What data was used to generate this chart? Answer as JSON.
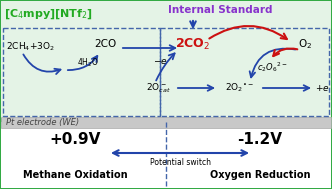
{
  "bg_outer": "#d8eeda",
  "bg_inner": "#e4f3e6",
  "bg_white": "#ffffff",
  "dashed_box_color": "#4466aa",
  "electrode_color": "#c8c8c8",
  "electrode_edge_color": "#aaaaaa",
  "electrode_text_color": "#444444",
  "title_ionic_liquid": "[C$_4$mpy][NTf$_2$]",
  "title_ionic_liquid_color": "#22aa22",
  "title_internal_standard": "Internal Standard",
  "title_internal_standard_color": "#8833cc",
  "arrow_blue": "#2244aa",
  "arrow_red": "#cc1111",
  "outer_border_color": "#33aa44",
  "text_voltage_left": "+0.9V",
  "text_voltage_right": "-1.2V",
  "text_potential_switch": "Potential switch",
  "text_methane_oxidation": "Methane Oxidation",
  "text_oxygen_reduction": "Oxygen Reduction",
  "text_electrode": "Pt electrode (WE)"
}
